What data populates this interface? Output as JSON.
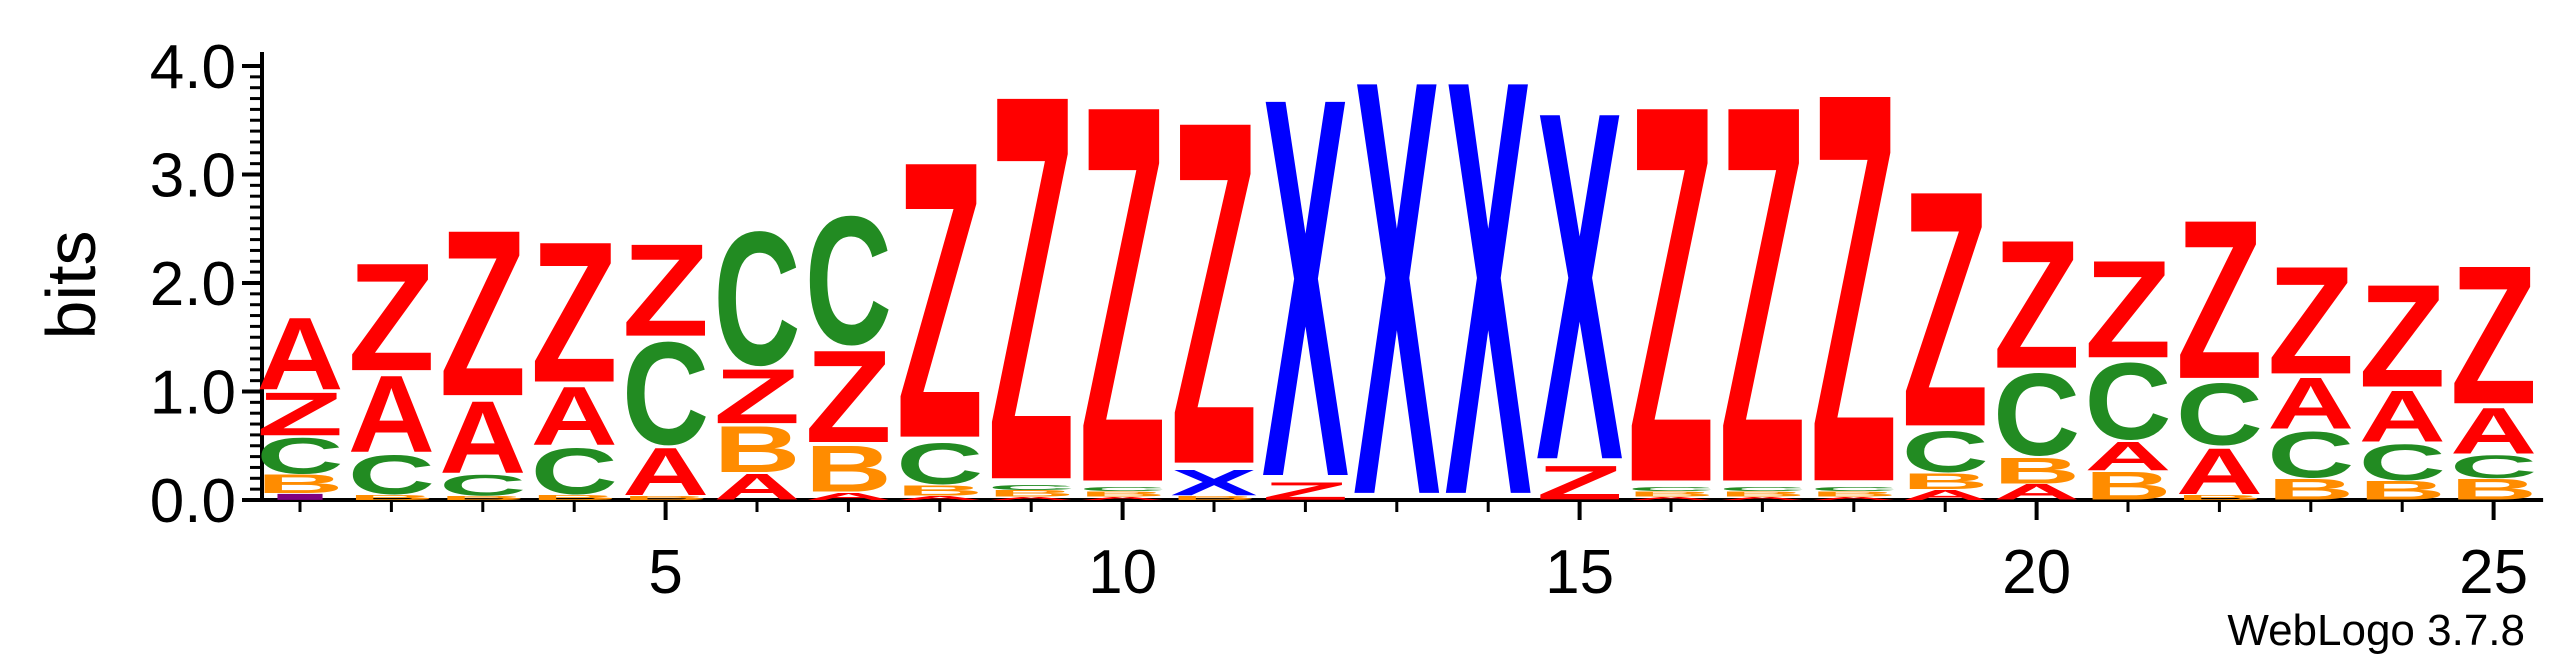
{
  "chart_data": {
    "type": "sequence-logo",
    "ylabel": "bits",
    "ylim": [
      0,
      4.0
    ],
    "yticks": [
      "0.0",
      "1.0",
      "2.0",
      "3.0",
      "4.0"
    ],
    "xticks": [
      5,
      10,
      15,
      20,
      25
    ],
    "positions": [
      {
        "pos": 1,
        "stack": [
          {
            "letter": "I",
            "bits": 0.06
          },
          {
            "letter": "B",
            "bits": 0.18
          },
          {
            "letter": "C",
            "bits": 0.35
          },
          {
            "letter": "Z",
            "bits": 0.42
          },
          {
            "letter": "A",
            "bits": 0.7
          }
        ]
      },
      {
        "pos": 2,
        "stack": [
          {
            "letter": "B",
            "bits": 0.05
          },
          {
            "letter": "C",
            "bits": 0.38
          },
          {
            "letter": "A",
            "bits": 0.75
          },
          {
            "letter": "Z",
            "bits": 1.05
          }
        ]
      },
      {
        "pos": 3,
        "stack": [
          {
            "letter": "B",
            "bits": 0.04
          },
          {
            "letter": "C",
            "bits": 0.2
          },
          {
            "letter": "A",
            "bits": 0.7
          },
          {
            "letter": "Z",
            "bits": 1.62
          }
        ]
      },
      {
        "pos": 4,
        "stack": [
          {
            "letter": "B",
            "bits": 0.05
          },
          {
            "letter": "C",
            "bits": 0.45
          },
          {
            "letter": "A",
            "bits": 0.57
          },
          {
            "letter": "Z",
            "bits": 1.37
          }
        ]
      },
      {
        "pos": 5,
        "stack": [
          {
            "letter": "B",
            "bits": 0.04
          },
          {
            "letter": "A",
            "bits": 0.46
          },
          {
            "letter": "C",
            "bits": 1.0
          },
          {
            "letter": "Z",
            "bits": 0.9
          }
        ]
      },
      {
        "pos": 6,
        "stack": [
          {
            "letter": "A",
            "bits": 0.25
          },
          {
            "letter": "B",
            "bits": 0.45
          },
          {
            "letter": "Z",
            "bits": 0.53
          },
          {
            "letter": "C",
            "bits": 1.3
          }
        ]
      },
      {
        "pos": 7,
        "stack": [
          {
            "letter": "A",
            "bits": 0.07
          },
          {
            "letter": "B",
            "bits": 0.45
          },
          {
            "letter": "Z",
            "bits": 0.9
          },
          {
            "letter": "C",
            "bits": 1.25
          }
        ]
      },
      {
        "pos": 8,
        "stack": [
          {
            "letter": "A",
            "bits": 0.04
          },
          {
            "letter": "B",
            "bits": 0.1
          },
          {
            "letter": "C",
            "bits": 0.4
          },
          {
            "letter": "Z",
            "bits": 2.7
          }
        ]
      },
      {
        "pos": 9,
        "stack": [
          {
            "letter": "A",
            "bits": 0.03
          },
          {
            "letter": "B",
            "bits": 0.06
          },
          {
            "letter": "C",
            "bits": 0.05
          },
          {
            "letter": "Z",
            "bits": 3.76
          }
        ]
      },
      {
        "pos": 10,
        "stack": [
          {
            "letter": "A",
            "bits": 0.03
          },
          {
            "letter": "B",
            "bits": 0.05
          },
          {
            "letter": "C",
            "bits": 0.04
          },
          {
            "letter": "Z",
            "bits": 3.68
          }
        ]
      },
      {
        "pos": 11,
        "stack": [
          {
            "letter": "B",
            "bits": 0.04
          },
          {
            "letter": "X",
            "bits": 0.25
          },
          {
            "letter": "Z",
            "bits": 3.35
          }
        ]
      },
      {
        "pos": 12,
        "stack": [
          {
            "letter": "Z",
            "bits": 0.17
          },
          {
            "letter": "X",
            "bits": 3.7
          }
        ]
      },
      {
        "pos": 13,
        "stack": [
          {
            "letter": "X",
            "bits": 4.05
          }
        ]
      },
      {
        "pos": 14,
        "stack": [
          {
            "letter": "X",
            "bits": 4.05
          }
        ]
      },
      {
        "pos": 15,
        "stack": [
          {
            "letter": "Z",
            "bits": 0.33
          },
          {
            "letter": "X",
            "bits": 3.4
          }
        ]
      },
      {
        "pos": 16,
        "stack": [
          {
            "letter": "A",
            "bits": 0.03
          },
          {
            "letter": "B",
            "bits": 0.05
          },
          {
            "letter": "C",
            "bits": 0.04
          },
          {
            "letter": "Z",
            "bits": 3.68
          }
        ]
      },
      {
        "pos": 17,
        "stack": [
          {
            "letter": "A",
            "bits": 0.03
          },
          {
            "letter": "B",
            "bits": 0.05
          },
          {
            "letter": "C",
            "bits": 0.04
          },
          {
            "letter": "Z",
            "bits": 3.68
          }
        ]
      },
      {
        "pos": 18,
        "stack": [
          {
            "letter": "A",
            "bits": 0.03
          },
          {
            "letter": "B",
            "bits": 0.05
          },
          {
            "letter": "C",
            "bits": 0.04
          },
          {
            "letter": "Z",
            "bits": 3.8
          }
        ]
      },
      {
        "pos": 19,
        "stack": [
          {
            "letter": "A",
            "bits": 0.1
          },
          {
            "letter": "B",
            "bits": 0.15
          },
          {
            "letter": "C",
            "bits": 0.4
          },
          {
            "letter": "Z",
            "bits": 2.3
          }
        ]
      },
      {
        "pos": 20,
        "stack": [
          {
            "letter": "A",
            "bits": 0.15
          },
          {
            "letter": "B",
            "bits": 0.25
          },
          {
            "letter": "C",
            "bits": 0.8
          },
          {
            "letter": "Z",
            "bits": 1.25
          }
        ]
      },
      {
        "pos": 21,
        "stack": [
          {
            "letter": "B",
            "bits": 0.27
          },
          {
            "letter": "A",
            "bits": 0.28
          },
          {
            "letter": "C",
            "bits": 0.75
          },
          {
            "letter": "Z",
            "bits": 0.95
          }
        ]
      },
      {
        "pos": 22,
        "stack": [
          {
            "letter": "B",
            "bits": 0.05
          },
          {
            "letter": "A",
            "bits": 0.45
          },
          {
            "letter": "C",
            "bits": 0.6
          },
          {
            "letter": "Z",
            "bits": 1.55
          }
        ]
      },
      {
        "pos": 23,
        "stack": [
          {
            "letter": "B",
            "bits": 0.2
          },
          {
            "letter": "C",
            "bits": 0.45
          },
          {
            "letter": "A",
            "bits": 0.5
          },
          {
            "letter": "Z",
            "bits": 1.05
          }
        ]
      },
      {
        "pos": 24,
        "stack": [
          {
            "letter": "B",
            "bits": 0.18
          },
          {
            "letter": "C",
            "bits": 0.35
          },
          {
            "letter": "A",
            "bits": 0.5
          },
          {
            "letter": "Z",
            "bits": 1.0
          }
        ]
      },
      {
        "pos": 25,
        "stack": [
          {
            "letter": "B",
            "bits": 0.2
          },
          {
            "letter": "C",
            "bits": 0.22
          },
          {
            "letter": "A",
            "bits": 0.45
          },
          {
            "letter": "Z",
            "bits": 1.35
          }
        ]
      }
    ],
    "letter_colors": {
      "A": "#ff0000",
      "Z": "#ff0000",
      "C": "#228b22",
      "B": "#ff8c00",
      "X": "#0000ff",
      "I": "#800080"
    }
  },
  "credit": "WebLogo 3.7.8"
}
